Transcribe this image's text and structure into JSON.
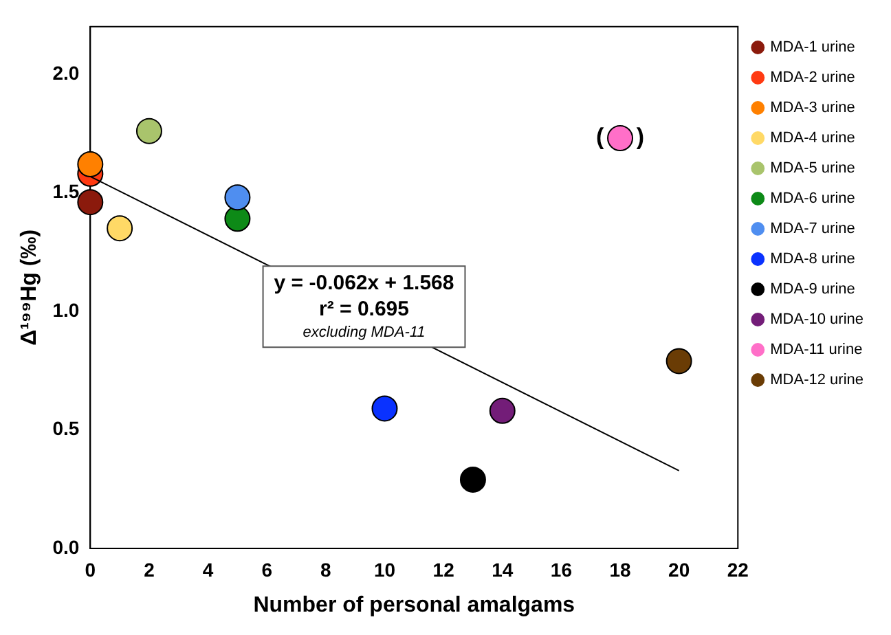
{
  "chart_data": {
    "type": "scatter",
    "xlabel": "Number of personal amalgams",
    "ylabel": "Δ¹⁹⁹Hg (‰)",
    "xlim": [
      0,
      22
    ],
    "xticks": [
      0,
      2,
      4,
      6,
      8,
      10,
      12,
      14,
      16,
      18,
      20,
      22
    ],
    "ylim": [
      0,
      2.2
    ],
    "yticks": [
      {
        "value": 0,
        "label": "0.0"
      },
      {
        "value": 0.5,
        "label": "0.5"
      },
      {
        "value": 1,
        "label": "1.0"
      },
      {
        "value": 1.5,
        "label": "1.5"
      },
      {
        "value": 2,
        "label": "2.0"
      }
    ],
    "grid": false,
    "legend": "right",
    "marker": "circle",
    "series": [
      {
        "name": "MDA-1 urine",
        "color": "#8b1a0c",
        "x": [
          0
        ],
        "values": [
          1.46
        ]
      },
      {
        "name": "MDA-2 urine",
        "color": "#ff3a12",
        "x": [
          0
        ],
        "values": [
          1.58
        ]
      },
      {
        "name": "MDA-3 urine",
        "color": "#ff8000",
        "x": [
          0
        ],
        "values": [
          1.62
        ]
      },
      {
        "name": "MDA-4 urine",
        "color": "#ffd966",
        "x": [
          1
        ],
        "values": [
          1.35
        ]
      },
      {
        "name": "MDA-5 urine",
        "color": "#a9c46c",
        "x": [
          2
        ],
        "values": [
          1.76
        ]
      },
      {
        "name": "MDA-6 urine",
        "color": "#0d8a17",
        "x": [
          5
        ],
        "values": [
          1.39
        ]
      },
      {
        "name": "MDA-7 urine",
        "color": "#4f8ef0",
        "x": [
          5
        ],
        "values": [
          1.48
        ]
      },
      {
        "name": "MDA-8 urine",
        "color": "#0a32ff",
        "x": [
          10
        ],
        "values": [
          0.59
        ]
      },
      {
        "name": "MDA-9 urine",
        "color": "#000000",
        "x": [
          13
        ],
        "values": [
          0.29
        ]
      },
      {
        "name": "MDA-10 urine",
        "color": "#731d78",
        "x": [
          14
        ],
        "values": [
          0.58
        ]
      },
      {
        "name": "MDA-11 urine",
        "color": "#ff6fc8",
        "x": [
          18
        ],
        "values": [
          1.73
        ]
      },
      {
        "name": "MDA-12 urine",
        "color": "#6a3c05",
        "x": [
          20
        ],
        "values": [
          0.79
        ]
      },
      {
        "type": "line",
        "color": "#000000",
        "x": [
          0,
          20
        ],
        "values": [
          1.568,
          0.328
        ],
        "marker": "none"
      }
    ],
    "annotations": [
      "y = -0.062x + 1.568",
      "r² = 0.695",
      "excluding MDA-11",
      {
        "text": "(     )",
        "x": 18,
        "y": 1.73
      }
    ]
  }
}
